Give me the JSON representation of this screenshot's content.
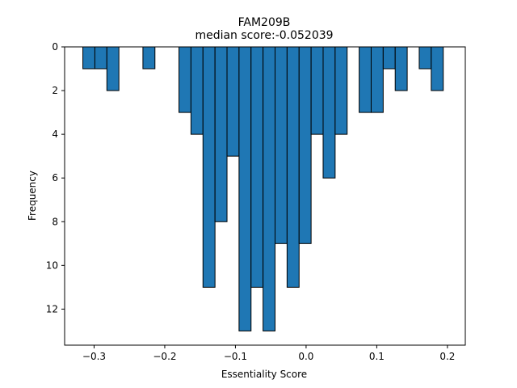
{
  "chart_data": {
    "type": "bar",
    "title": "FAM209B",
    "subtitle": "median score:-0.052039",
    "xlabel": "Essentiality Score",
    "ylabel": "Frequency",
    "bar_color": "#1f77b4",
    "edge_color": "#000000",
    "y_inverted": true,
    "xlim": [
      -0.3417,
      0.2253
    ],
    "ylim": [
      0,
      13.65
    ],
    "x_ticks": [
      -0.3,
      -0.2,
      -0.1,
      0.0,
      0.1,
      0.2
    ],
    "x_tick_labels": [
      "−0.3",
      "−0.2",
      "−0.1",
      "0.0",
      "0.1",
      "0.2"
    ],
    "y_ticks": [
      0,
      2,
      4,
      6,
      8,
      10,
      12
    ],
    "y_tick_labels": [
      "0",
      "2",
      "4",
      "6",
      "8",
      "10",
      "12"
    ],
    "bins": [
      {
        "x0": -0.3159,
        "x1": -0.2989,
        "count": 1
      },
      {
        "x0": -0.2989,
        "x1": -0.2819,
        "count": 1
      },
      {
        "x0": -0.2819,
        "x1": -0.2649,
        "count": 2
      },
      {
        "x0": -0.2309,
        "x1": -0.2139,
        "count": 1
      },
      {
        "x0": -0.1799,
        "x1": -0.1629,
        "count": 3
      },
      {
        "x0": -0.1629,
        "x1": -0.1459,
        "count": 4
      },
      {
        "x0": -0.1459,
        "x1": -0.1289,
        "count": 11
      },
      {
        "x0": -0.1289,
        "x1": -0.1119,
        "count": 8
      },
      {
        "x0": -0.1119,
        "x1": -0.0949,
        "count": 5
      },
      {
        "x0": -0.0949,
        "x1": -0.0779,
        "count": 13
      },
      {
        "x0": -0.0779,
        "x1": -0.0609,
        "count": 11
      },
      {
        "x0": -0.0609,
        "x1": -0.0439,
        "count": 13
      },
      {
        "x0": -0.0439,
        "x1": -0.0269,
        "count": 9
      },
      {
        "x0": -0.0269,
        "x1": -0.0099,
        "count": 11
      },
      {
        "x0": -0.0099,
        "x1": 0.0071,
        "count": 9
      },
      {
        "x0": 0.0071,
        "x1": 0.0241,
        "count": 4
      },
      {
        "x0": 0.0241,
        "x1": 0.0411,
        "count": 6
      },
      {
        "x0": 0.0411,
        "x1": 0.0581,
        "count": 4
      },
      {
        "x0": 0.0751,
        "x1": 0.0921,
        "count": 3
      },
      {
        "x0": 0.0921,
        "x1": 0.1091,
        "count": 3
      },
      {
        "x0": 0.1091,
        "x1": 0.1261,
        "count": 1
      },
      {
        "x0": 0.1261,
        "x1": 0.1431,
        "count": 2
      },
      {
        "x0": 0.1601,
        "x1": 0.1771,
        "count": 1
      },
      {
        "x0": 0.1771,
        "x1": 0.1941,
        "count": 2
      }
    ]
  }
}
